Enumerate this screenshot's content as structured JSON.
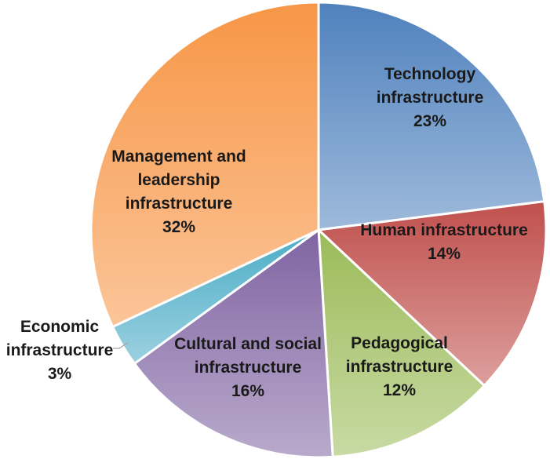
{
  "chart_data": {
    "type": "pie",
    "title": "",
    "slices": [
      {
        "label": "Technology infrastructure",
        "value": 23,
        "percent_label": "23%",
        "label_lines": [
          "Technology",
          "infrastructure",
          "23%"
        ],
        "color": "#4f81bd"
      },
      {
        "label": "Human infrastructure",
        "value": 14,
        "percent_label": "14%",
        "label_lines": [
          "Human infrastructure",
          "14%"
        ],
        "color": "#c0504d"
      },
      {
        "label": "Pedagogical infrastructure",
        "value": 12,
        "percent_label": "12%",
        "label_lines": [
          "Pedagogical",
          "infrastructure",
          "12%"
        ],
        "color": "#9bbb59"
      },
      {
        "label": "Cultural and social infrastructure",
        "value": 16,
        "percent_label": "16%",
        "label_lines": [
          "Cultural and social",
          "infrastructure",
          "16%"
        ],
        "color": "#8064a2"
      },
      {
        "label": "Economic infrastructure",
        "value": 3,
        "percent_label": "3%",
        "label_lines": [
          "Economic",
          "infrastructure",
          "3%"
        ],
        "color": "#4bacc6"
      },
      {
        "label": "Management and leadership infrastructure",
        "value": 32,
        "percent_label": "32%",
        "label_lines": [
          "Management and",
          "leadership",
          "infrastructure",
          "32%"
        ],
        "color": "#f79646"
      }
    ],
    "start_angle_deg": 0,
    "direction": "clockwise",
    "legend": "none",
    "data_labels": "category name and percentage"
  }
}
